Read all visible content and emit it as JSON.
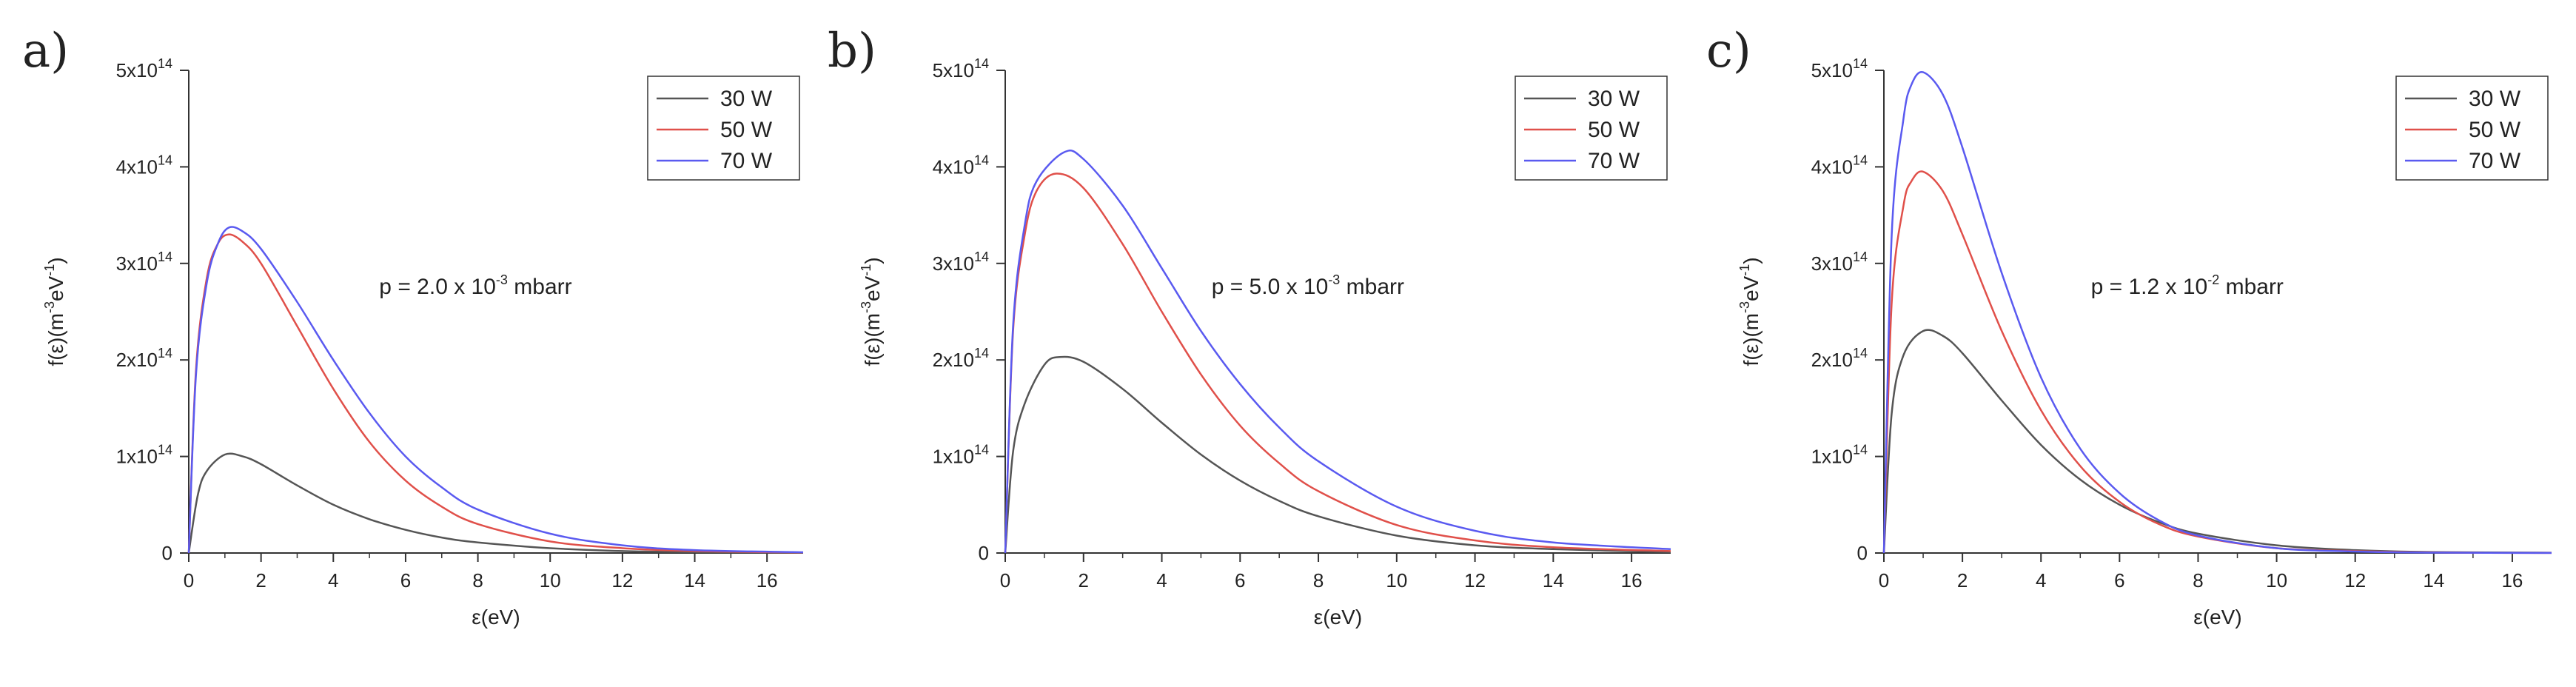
{
  "chart_data": [
    {
      "type": "line",
      "panel_label": "a)",
      "annotation": {
        "prefix": "p = 2.0 x 10",
        "exponent": "-3",
        "suffix": " mbarr"
      },
      "xlabel": "ε(eV)",
      "ylabel": {
        "base": "f(ε)(m",
        "exp1": "-3",
        "mid": "eV",
        "exp2": "-1",
        "end": ")"
      },
      "xlim": [
        0,
        17
      ],
      "ylim": [
        0,
        500000000000000.0
      ],
      "xticks": [
        0,
        2,
        4,
        6,
        8,
        10,
        12,
        14,
        16
      ],
      "yticks": [
        {
          "value": 0,
          "mantissa": "0",
          "exp": ""
        },
        {
          "value": 100000000000000.0,
          "mantissa": "1x10",
          "exp": "14"
        },
        {
          "value": 200000000000000.0,
          "mantissa": "2x10",
          "exp": "14"
        },
        {
          "value": 300000000000000.0,
          "mantissa": "3x10",
          "exp": "14"
        },
        {
          "value": 400000000000000.0,
          "mantissa": "4x10",
          "exp": "14"
        },
        {
          "value": 500000000000000.0,
          "mantissa": "5x10",
          "exp": "14"
        }
      ],
      "legend_position": "top-right",
      "series": [
        {
          "name": "30 W",
          "color": "#555555",
          "x": [
            0,
            0.25,
            0.5,
            1,
            1.5,
            2,
            3,
            4,
            5,
            6,
            7,
            8,
            10,
            12,
            14,
            17
          ],
          "y": [
            0,
            60000000000000.0,
            85000000000000.0,
            102000000000000.0,
            100000000000000.0,
            92000000000000.0,
            70000000000000.0,
            50000000000000.0,
            35000000000000.0,
            24000000000000.0,
            16000000000000.0,
            11000000000000.0,
            5000000000000.0,
            2000000000000.0,
            1000000000000.0,
            300000000000.0
          ]
        },
        {
          "name": "50 W",
          "color": "#e0504a",
          "x": [
            0,
            0.2,
            0.5,
            0.8,
            1.1,
            1.5,
            2,
            3,
            4,
            5,
            6,
            7,
            8,
            10,
            12,
            14,
            17
          ],
          "y": [
            0,
            190000000000000.0,
            285000000000000.0,
            320000000000000.0,
            330000000000000.0,
            322000000000000.0,
            300000000000000.0,
            235000000000000.0,
            170000000000000.0,
            115000000000000.0,
            75000000000000.0,
            48000000000000.0,
            30000000000000.0,
            12000000000000.0,
            5000000000000.0,
            2000000000000.0,
            500000000000.0
          ]
        },
        {
          "name": "70 W",
          "color": "#5a5af0",
          "x": [
            0,
            0.2,
            0.5,
            0.8,
            1.1,
            1.5,
            2,
            3,
            4,
            5,
            6,
            7,
            8,
            10,
            12,
            14,
            17
          ],
          "y": [
            0,
            185000000000000.0,
            280000000000000.0,
            320000000000000.0,
            337000000000000.0,
            333000000000000.0,
            315000000000000.0,
            260000000000000.0,
            200000000000000.0,
            145000000000000.0,
            100000000000000.0,
            68000000000000.0,
            45000000000000.0,
            20000000000000.0,
            8000000000000.0,
            3000000000000.0,
            800000000000.0
          ]
        }
      ]
    },
    {
      "type": "line",
      "panel_label": "b)",
      "annotation": {
        "prefix": "p = 5.0 x 10",
        "exponent": "-3",
        "suffix": " mbarr"
      },
      "xlabel": "ε(eV)",
      "ylabel": {
        "base": "f(ε)(m",
        "exp1": "-3",
        "mid": "eV",
        "exp2": "-1",
        "end": ")"
      },
      "xlim": [
        0,
        17
      ],
      "ylim": [
        0,
        500000000000000.0
      ],
      "xticks": [
        0,
        2,
        4,
        6,
        8,
        10,
        12,
        14,
        16
      ],
      "yticks": [
        {
          "value": 0,
          "mantissa": "0",
          "exp": ""
        },
        {
          "value": 100000000000000.0,
          "mantissa": "1x10",
          "exp": "14"
        },
        {
          "value": 200000000000000.0,
          "mantissa": "2x10",
          "exp": "14"
        },
        {
          "value": 300000000000000.0,
          "mantissa": "3x10",
          "exp": "14"
        },
        {
          "value": 400000000000000.0,
          "mantissa": "4x10",
          "exp": "14"
        },
        {
          "value": 500000000000000.0,
          "mantissa": "5x10",
          "exp": "14"
        }
      ],
      "legend_position": "top-right",
      "series": [
        {
          "name": "30 W",
          "color": "#555555",
          "x": [
            0,
            0.2,
            0.5,
            1,
            1.4,
            2,
            3,
            4,
            5,
            6,
            7,
            8,
            10,
            12,
            14,
            17
          ],
          "y": [
            0,
            105000000000000.0,
            155000000000000.0,
            195000000000000.0,
            203000000000000.0,
            198000000000000.0,
            170000000000000.0,
            135000000000000.0,
            102000000000000.0,
            75000000000000.0,
            54000000000000.0,
            38000000000000.0,
            18000000000000.0,
            8000000000000.0,
            4000000000000.0,
            1000000000000.0
          ]
        },
        {
          "name": "50 W",
          "color": "#e0504a",
          "x": [
            0,
            0.2,
            0.5,
            0.8,
            1.3,
            2,
            3,
            4,
            5,
            6,
            7,
            8,
            10,
            12,
            14,
            17
          ],
          "y": [
            0,
            230000000000000.0,
            330000000000000.0,
            375000000000000.0,
            393000000000000.0,
            378000000000000.0,
            320000000000000.0,
            250000000000000.0,
            185000000000000.0,
            132000000000000.0,
            93000000000000.0,
            64000000000000.0,
            29000000000000.0,
            13000000000000.0,
            6000000000000.0,
            2000000000000.0
          ]
        },
        {
          "name": "70 W",
          "color": "#5a5af0",
          "x": [
            0,
            0.2,
            0.5,
            0.8,
            1.5,
            2,
            3,
            4,
            5,
            6,
            7,
            8,
            10,
            12,
            14,
            17
          ],
          "y": [
            0,
            235000000000000.0,
            340000000000000.0,
            385000000000000.0,
            415000000000000.0,
            408000000000000.0,
            360000000000000.0,
            295000000000000.0,
            230000000000000.0,
            175000000000000.0,
            130000000000000.0,
            95000000000000.0,
            48000000000000.0,
            23000000000000.0,
            11000000000000.0,
            4000000000000.0
          ]
        }
      ]
    },
    {
      "type": "line",
      "panel_label": "c)",
      "annotation": {
        "prefix": "p = 1.2 x 10",
        "exponent": "-2",
        "suffix": " mbarr"
      },
      "xlabel": "ε(eV)",
      "ylabel": {
        "base": "f(ε)(m",
        "exp1": "-3",
        "mid": "eV",
        "exp2": "-1",
        "end": ")"
      },
      "xlim": [
        0,
        17
      ],
      "ylim": [
        0,
        500000000000000.0
      ],
      "xticks": [
        0,
        2,
        4,
        6,
        8,
        10,
        12,
        14,
        16
      ],
      "yticks": [
        {
          "value": 0,
          "mantissa": "0",
          "exp": ""
        },
        {
          "value": 100000000000000.0,
          "mantissa": "1x10",
          "exp": "14"
        },
        {
          "value": 200000000000000.0,
          "mantissa": "2x10",
          "exp": "14"
        },
        {
          "value": 300000000000000.0,
          "mantissa": "3x10",
          "exp": "14"
        },
        {
          "value": 400000000000000.0,
          "mantissa": "4x10",
          "exp": "14"
        },
        {
          "value": 500000000000000.0,
          "mantissa": "5x10",
          "exp": "14"
        }
      ],
      "legend_position": "top-right",
      "series": [
        {
          "name": "30 W",
          "color": "#555555",
          "x": [
            0,
            0.2,
            0.5,
            1,
            1.5,
            2,
            3,
            4,
            5,
            6,
            7,
            8,
            10,
            12,
            14,
            17
          ],
          "y": [
            0,
            145000000000000.0,
            205000000000000.0,
            230000000000000.0,
            225000000000000.0,
            207000000000000.0,
            158000000000000.0,
            112000000000000.0,
            76000000000000.0,
            50000000000000.0,
            32000000000000.0,
            20000000000000.0,
            8000000000000.0,
            3000000000000.0,
            1000000000000.0,
            300000000000.0
          ]
        },
        {
          "name": "50 W",
          "color": "#e0504a",
          "x": [
            0,
            0.2,
            0.5,
            0.7,
            1,
            1.5,
            2,
            3,
            4,
            5,
            6,
            7,
            8,
            10,
            12,
            14,
            17
          ],
          "y": [
            0,
            260000000000000.0,
            360000000000000.0,
            385000000000000.0,
            395000000000000.0,
            375000000000000.0,
            330000000000000.0,
            230000000000000.0,
            148000000000000.0,
            90000000000000.0,
            53000000000000.0,
            30000000000000.0,
            17000000000000.0,
            5000000000000.0,
            2000000000000.0,
            500000000000.0,
            100000000000.0
          ]
        },
        {
          "name": "70 W",
          "color": "#5a5af0",
          "x": [
            0,
            0.2,
            0.5,
            0.7,
            1,
            1.5,
            2,
            3,
            4,
            5,
            6,
            7,
            8,
            10,
            12,
            14,
            17
          ],
          "y": [
            0,
            330000000000000.0,
            450000000000000.0,
            485000000000000.0,
            498000000000000.0,
            475000000000000.0,
            420000000000000.0,
            290000000000000.0,
            182000000000000.0,
            108000000000000.0,
            62000000000000.0,
            34000000000000.0,
            18000000000000.0,
            5000000000000.0,
            1500000000000.0,
            400000000000.0,
            100000000000.0
          ]
        }
      ]
    }
  ]
}
